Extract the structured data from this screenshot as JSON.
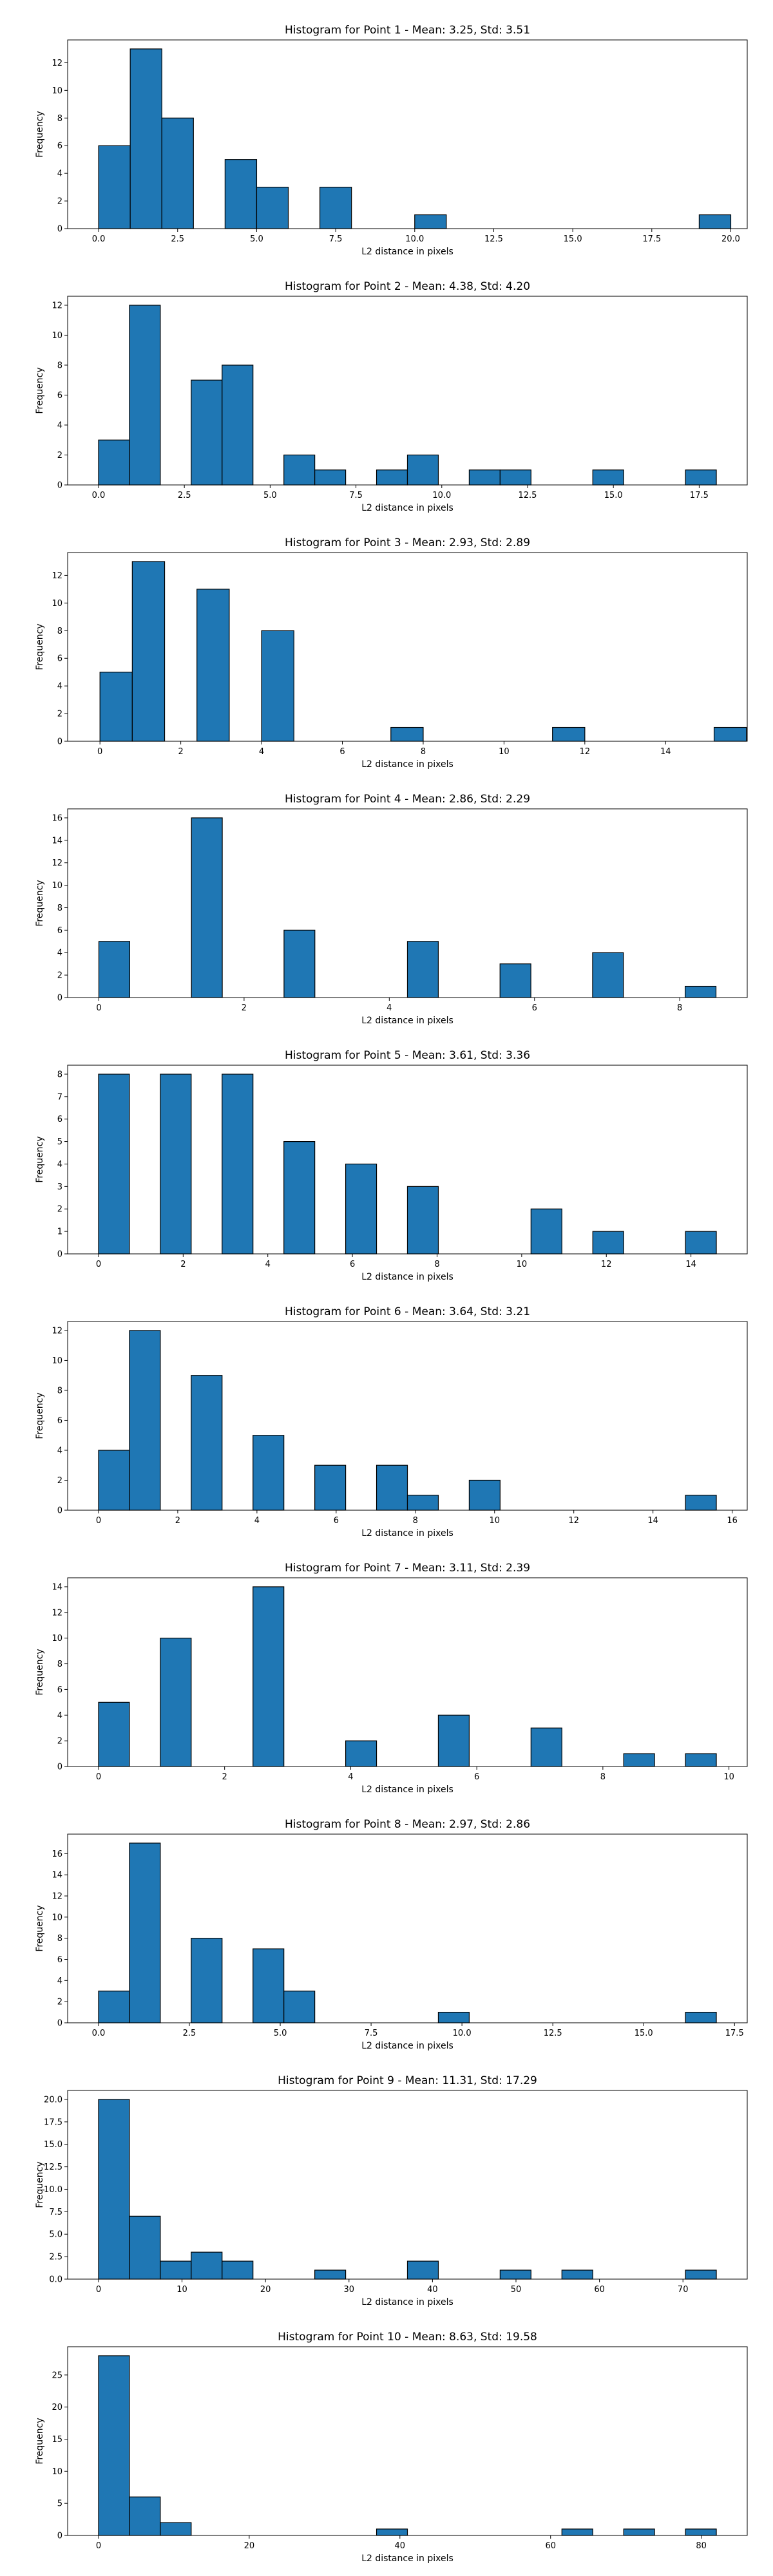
{
  "chart_data": [
    {
      "type": "bar",
      "title": "Histogram for Point 1 - Mean: 3.25, Std: 3.51",
      "xlabel": "L2 distance in pixels",
      "ylabel": "Frequency",
      "xlim": [
        -0.98,
        20.52
      ],
      "ylim": [
        0,
        13.65
      ],
      "xticks": [
        {
          "v": 0,
          "label": "0.0"
        },
        {
          "v": 2.5,
          "label": "2.5"
        },
        {
          "v": 5,
          "label": "5.0"
        },
        {
          "v": 7.5,
          "label": "7.5"
        },
        {
          "v": 10,
          "label": "10.0"
        },
        {
          "v": 12.5,
          "label": "12.5"
        },
        {
          "v": 15,
          "label": "15.0"
        },
        {
          "v": 17.5,
          "label": "17.5"
        },
        {
          "v": 20,
          "label": "20.0"
        }
      ],
      "yticks": [
        0,
        2,
        4,
        6,
        8,
        10,
        12
      ],
      "bins": [
        [
          0,
          1,
          6
        ],
        [
          1,
          2,
          13
        ],
        [
          2,
          3,
          8
        ],
        [
          4,
          5,
          5
        ],
        [
          5,
          6,
          3
        ],
        [
          7,
          8,
          3
        ],
        [
          10,
          11,
          1
        ],
        [
          19,
          20,
          1
        ]
      ]
    },
    {
      "type": "bar",
      "title": "Histogram for Point 2 - Mean: 4.38, Std: 4.20",
      "xlabel": "L2 distance in pixels",
      "ylabel": "Frequency",
      "xlim": [
        -0.9,
        18.9
      ],
      "ylim": [
        0,
        12.6
      ],
      "xticks": [
        {
          "v": 0,
          "label": "0.0"
        },
        {
          "v": 2.5,
          "label": "2.5"
        },
        {
          "v": 5,
          "label": "5.0"
        },
        {
          "v": 7.5,
          "label": "7.5"
        },
        {
          "v": 10,
          "label": "10.0"
        },
        {
          "v": 12.5,
          "label": "12.5"
        },
        {
          "v": 15,
          "label": "15.0"
        },
        {
          "v": 17.5,
          "label": "17.5"
        }
      ],
      "yticks": [
        0,
        2,
        4,
        6,
        8,
        10,
        12
      ],
      "bins": [
        [
          0,
          0.9,
          3
        ],
        [
          0.9,
          1.8,
          12
        ],
        [
          2.7,
          3.6,
          7
        ],
        [
          3.6,
          4.5,
          8
        ],
        [
          5.4,
          6.3,
          2
        ],
        [
          6.3,
          7.2,
          1
        ],
        [
          8.1,
          9.0,
          1
        ],
        [
          9.0,
          9.9,
          2
        ],
        [
          10.8,
          11.7,
          1
        ],
        [
          11.7,
          12.6,
          1
        ],
        [
          14.4,
          15.3,
          1
        ],
        [
          17.1,
          18.0,
          1
        ]
      ]
    },
    {
      "type": "bar",
      "title": "Histogram for Point 3 - Mean: 2.93, Std: 2.89",
      "xlabel": "L2 distance in pixels",
      "ylabel": "Frequency",
      "xlim": [
        -0.8,
        16.02
      ],
      "ylim": [
        0,
        13.65
      ],
      "xticks": [
        {
          "v": 0,
          "label": "0"
        },
        {
          "v": 2,
          "label": "2"
        },
        {
          "v": 4,
          "label": "4"
        },
        {
          "v": 6,
          "label": "6"
        },
        {
          "v": 8,
          "label": "8"
        },
        {
          "v": 10,
          "label": "10"
        },
        {
          "v": 12,
          "label": "12"
        },
        {
          "v": 14,
          "label": "14"
        }
      ],
      "yticks": [
        0,
        2,
        4,
        6,
        8,
        10,
        12
      ],
      "bins": [
        [
          0,
          0.8,
          5
        ],
        [
          0.8,
          1.6,
          13
        ],
        [
          2.4,
          3.2,
          11
        ],
        [
          4.0,
          4.8,
          8
        ],
        [
          7.2,
          8.0,
          1
        ],
        [
          11.2,
          12.0,
          1
        ],
        [
          15.2,
          16.0,
          1
        ]
      ]
    },
    {
      "type": "bar",
      "title": "Histogram for Point 4 - Mean: 2.86, Std: 2.29",
      "xlabel": "L2 distance in pixels",
      "ylabel": "Frequency",
      "xlim": [
        -0.43,
        8.93
      ],
      "ylim": [
        0,
        16.8
      ],
      "xticks": [
        {
          "v": 0,
          "label": "0"
        },
        {
          "v": 2,
          "label": "2"
        },
        {
          "v": 4,
          "label": "4"
        },
        {
          "v": 6,
          "label": "6"
        },
        {
          "v": 8,
          "label": "8"
        }
      ],
      "yticks": [
        0,
        2,
        4,
        6,
        8,
        10,
        12,
        14,
        16
      ],
      "bins": [
        [
          0,
          0.425,
          5
        ],
        [
          1.275,
          1.7,
          16
        ],
        [
          2.55,
          2.975,
          6
        ],
        [
          4.25,
          4.675,
          5
        ],
        [
          5.525,
          5.95,
          3
        ],
        [
          6.8,
          7.225,
          4
        ],
        [
          8.075,
          8.5,
          1
        ]
      ]
    },
    {
      "type": "bar",
      "title": "Histogram for Point 5 - Mean: 3.61, Std: 3.36",
      "xlabel": "L2 distance in pixels",
      "ylabel": "Frequency",
      "xlim": [
        -0.73,
        15.33
      ],
      "ylim": [
        0,
        8.4
      ],
      "xticks": [
        {
          "v": 0,
          "label": "0"
        },
        {
          "v": 2,
          "label": "2"
        },
        {
          "v": 4,
          "label": "4"
        },
        {
          "v": 6,
          "label": "6"
        },
        {
          "v": 8,
          "label": "8"
        },
        {
          "v": 10,
          "label": "10"
        },
        {
          "v": 12,
          "label": "12"
        },
        {
          "v": 14,
          "label": "14"
        }
      ],
      "yticks": [
        0,
        1,
        2,
        3,
        4,
        5,
        6,
        7,
        8
      ],
      "bins": [
        [
          0,
          0.73,
          8
        ],
        [
          1.46,
          2.19,
          8
        ],
        [
          2.92,
          3.65,
          8
        ],
        [
          4.38,
          5.11,
          5
        ],
        [
          5.84,
          6.57,
          4
        ],
        [
          7.3,
          8.03,
          3
        ],
        [
          10.22,
          10.95,
          2
        ],
        [
          11.68,
          12.41,
          1
        ],
        [
          13.87,
          14.6,
          1
        ]
      ]
    },
    {
      "type": "bar",
      "title": "Histogram for Point 6 - Mean: 3.64, Std: 3.21",
      "xlabel": "L2 distance in pixels",
      "ylabel": "Frequency",
      "xlim": [
        -0.78,
        16.38
      ],
      "ylim": [
        0,
        12.6
      ],
      "xticks": [
        {
          "v": 0,
          "label": "0"
        },
        {
          "v": 2,
          "label": "2"
        },
        {
          "v": 4,
          "label": "4"
        },
        {
          "v": 6,
          "label": "6"
        },
        {
          "v": 8,
          "label": "8"
        },
        {
          "v": 10,
          "label": "10"
        },
        {
          "v": 12,
          "label": "12"
        },
        {
          "v": 14,
          "label": "14"
        },
        {
          "v": 16,
          "label": "16"
        }
      ],
      "yticks": [
        0,
        2,
        4,
        6,
        8,
        10,
        12
      ],
      "bins": [
        [
          0,
          0.78,
          4
        ],
        [
          0.78,
          1.56,
          12
        ],
        [
          2.34,
          3.12,
          9
        ],
        [
          3.9,
          4.68,
          5
        ],
        [
          5.46,
          6.24,
          3
        ],
        [
          7.02,
          7.8,
          3
        ],
        [
          7.8,
          8.58,
          1
        ],
        [
          9.36,
          10.14,
          2
        ],
        [
          14.82,
          15.6,
          1
        ]
      ]
    },
    {
      "type": "bar",
      "title": "Histogram for Point 7 - Mean: 3.11, Std: 2.39",
      "xlabel": "L2 distance in pixels",
      "ylabel": "Frequency",
      "xlim": [
        -0.49,
        10.29
      ],
      "ylim": [
        0,
        14.7
      ],
      "xticks": [
        {
          "v": 0,
          "label": "0"
        },
        {
          "v": 2,
          "label": "2"
        },
        {
          "v": 4,
          "label": "4"
        },
        {
          "v": 6,
          "label": "6"
        },
        {
          "v": 8,
          "label": "8"
        },
        {
          "v": 10,
          "label": "10"
        }
      ],
      "yticks": [
        0,
        2,
        4,
        6,
        8,
        10,
        12,
        14
      ],
      "bins": [
        [
          0,
          0.49,
          5
        ],
        [
          0.98,
          1.47,
          10
        ],
        [
          2.45,
          2.94,
          14
        ],
        [
          3.92,
          4.41,
          2
        ],
        [
          5.39,
          5.88,
          4
        ],
        [
          6.86,
          7.35,
          3
        ],
        [
          8.33,
          8.82,
          1
        ],
        [
          9.31,
          9.8,
          1
        ]
      ]
    },
    {
      "type": "bar",
      "title": "Histogram for Point 8 - Mean: 2.97, Std: 2.86",
      "xlabel": "L2 distance in pixels",
      "ylabel": "Frequency",
      "xlim": [
        -0.85,
        17.85
      ],
      "ylim": [
        0,
        17.85
      ],
      "xticks": [
        {
          "v": 0,
          "label": "0.0"
        },
        {
          "v": 2.5,
          "label": "2.5"
        },
        {
          "v": 5,
          "label": "5.0"
        },
        {
          "v": 7.5,
          "label": "7.5"
        },
        {
          "v": 10,
          "label": "10.0"
        },
        {
          "v": 12.5,
          "label": "12.5"
        },
        {
          "v": 15,
          "label": "15.0"
        },
        {
          "v": 17.5,
          "label": "17.5"
        }
      ],
      "yticks": [
        0,
        2,
        4,
        6,
        8,
        10,
        12,
        14,
        16
      ],
      "bins": [
        [
          0,
          0.85,
          3
        ],
        [
          0.85,
          1.7,
          17
        ],
        [
          2.55,
          3.4,
          8
        ],
        [
          4.25,
          5.1,
          7
        ],
        [
          5.1,
          5.95,
          3
        ],
        [
          9.35,
          10.2,
          1
        ],
        [
          16.15,
          17.0,
          1
        ]
      ]
    },
    {
      "type": "bar",
      "title": "Histogram for Point 9 - Mean: 11.31, Std: 17.29",
      "xlabel": "L2 distance in pixels",
      "ylabel": "Frequency",
      "xlim": [
        -3.7,
        77.7
      ],
      "ylim": [
        0,
        21
      ],
      "xticks": [
        {
          "v": 0,
          "label": "0"
        },
        {
          "v": 10,
          "label": "10"
        },
        {
          "v": 20,
          "label": "20"
        },
        {
          "v": 30,
          "label": "30"
        },
        {
          "v": 40,
          "label": "40"
        },
        {
          "v": 50,
          "label": "50"
        },
        {
          "v": 60,
          "label": "60"
        },
        {
          "v": 70,
          "label": "70"
        }
      ],
      "yticks": [
        {
          "v": 0,
          "label": "0.0"
        },
        {
          "v": 2.5,
          "label": "2.5"
        },
        {
          "v": 5,
          "label": "5.0"
        },
        {
          "v": 7.5,
          "label": "7.5"
        },
        {
          "v": 10,
          "label": "10.0"
        },
        {
          "v": 12.5,
          "label": "12.5"
        },
        {
          "v": 15,
          "label": "15.0"
        },
        {
          "v": 17.5,
          "label": "17.5"
        },
        {
          "v": 20,
          "label": "20.0"
        }
      ],
      "bins": [
        [
          0,
          3.7,
          20
        ],
        [
          3.7,
          7.4,
          7
        ],
        [
          7.4,
          11.1,
          2
        ],
        [
          11.1,
          14.8,
          3
        ],
        [
          14.8,
          18.5,
          2
        ],
        [
          25.9,
          29.6,
          1
        ],
        [
          37.0,
          40.7,
          2
        ],
        [
          48.1,
          51.8,
          1
        ],
        [
          55.5,
          59.2,
          1
        ],
        [
          70.3,
          74.0,
          1
        ]
      ]
    },
    {
      "type": "bar",
      "title": "Histogram for Point 10 - Mean: 8.63, Std: 19.58",
      "xlabel": "L2 distance in pixels",
      "ylabel": "Frequency",
      "xlim": [
        -4.1,
        86.1
      ],
      "ylim": [
        0,
        29.4
      ],
      "xticks": [
        {
          "v": 0,
          "label": "0"
        },
        {
          "v": 20,
          "label": "20"
        },
        {
          "v": 40,
          "label": "40"
        },
        {
          "v": 60,
          "label": "60"
        },
        {
          "v": 80,
          "label": "80"
        }
      ],
      "yticks": [
        0,
        5,
        10,
        15,
        20,
        25
      ],
      "bins": [
        [
          0,
          4.1,
          28
        ],
        [
          4.1,
          8.2,
          6
        ],
        [
          8.2,
          12.3,
          2
        ],
        [
          36.9,
          41.0,
          1
        ],
        [
          61.5,
          65.6,
          1
        ],
        [
          69.7,
          73.8,
          1
        ],
        [
          77.9,
          82.0,
          1
        ]
      ]
    }
  ]
}
